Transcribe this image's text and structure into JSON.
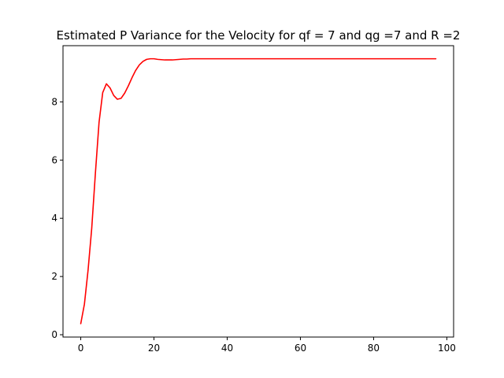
{
  "chart_data": {
    "type": "line",
    "title": "Estimated P Variance for the Velocity for qf = 7 and qg =7 and  R =2",
    "xlabel": "",
    "ylabel": "",
    "xlim": [
      -4.85,
      101.85
    ],
    "ylim": [
      -0.08,
      9.93
    ],
    "xticks": [
      0,
      20,
      40,
      60,
      80,
      100
    ],
    "xtick_labels": [
      "0",
      "20",
      "40",
      "60",
      "80",
      "100"
    ],
    "yticks": [
      0,
      2,
      4,
      6,
      8
    ],
    "ytick_labels": [
      "0",
      "2",
      "4",
      "6",
      "8"
    ],
    "grid": false,
    "legend": "none",
    "series": [
      {
        "color": "#ff0000",
        "x": [
          0,
          1,
          2,
          3,
          4,
          5,
          6,
          7,
          8,
          9,
          10,
          11,
          12,
          13,
          14,
          15,
          16,
          17,
          18,
          19,
          20,
          21,
          22,
          23,
          24,
          25,
          26,
          27,
          28,
          29,
          30,
          32,
          35,
          40,
          50,
          60,
          70,
          80,
          90,
          97
        ],
        "y": [
          0.38,
          1.05,
          2.22,
          3.66,
          5.55,
          7.3,
          8.32,
          8.62,
          8.48,
          8.22,
          8.09,
          8.12,
          8.3,
          8.55,
          8.83,
          9.08,
          9.27,
          9.39,
          9.46,
          9.48,
          9.48,
          9.46,
          9.45,
          9.44,
          9.44,
          9.44,
          9.45,
          9.46,
          9.47,
          9.47,
          9.48,
          9.48,
          9.48,
          9.48,
          9.48,
          9.48,
          9.48,
          9.48,
          9.48,
          9.48
        ]
      }
    ]
  }
}
